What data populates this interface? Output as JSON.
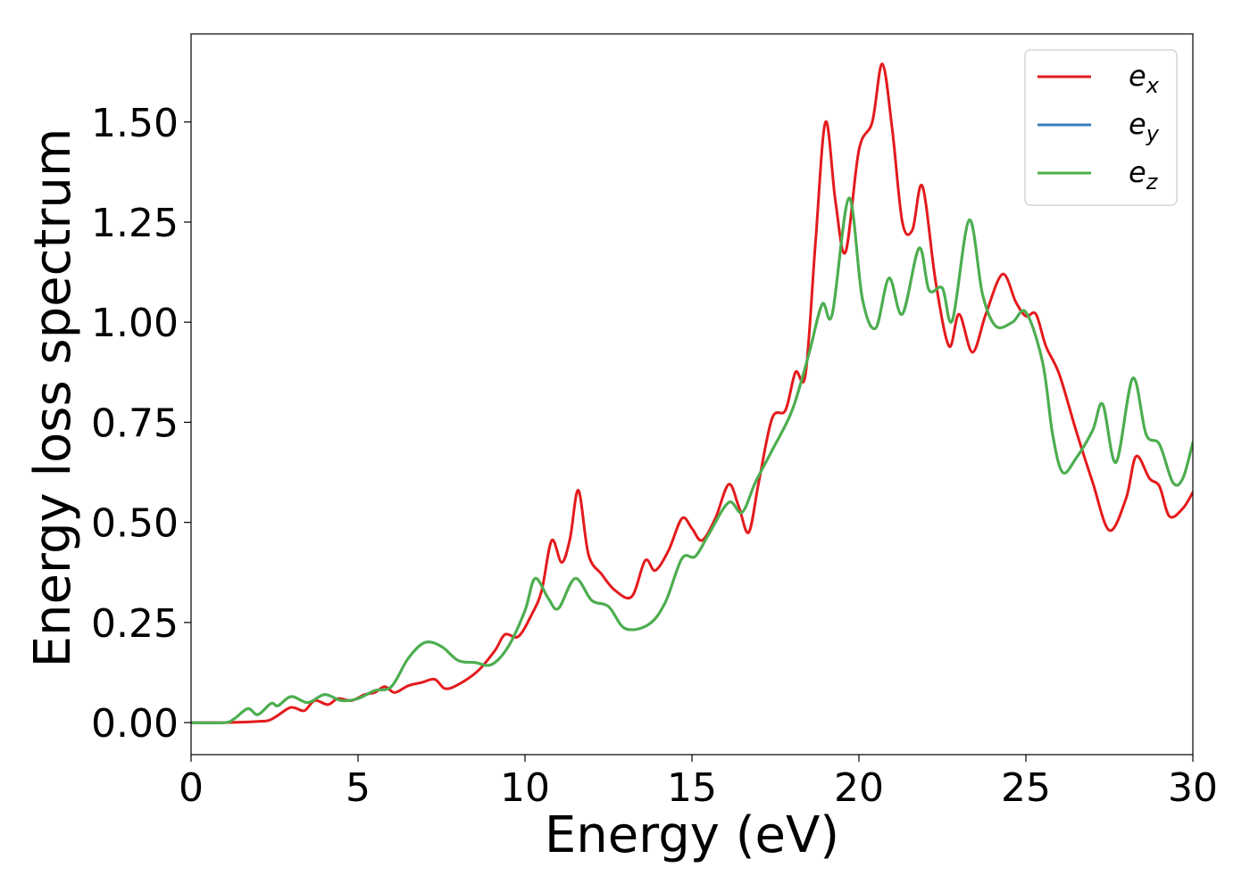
{
  "chart_data": {
    "type": "line",
    "title": "",
    "xlabel": "Energy (eV)",
    "ylabel": "Energy loss spectrum",
    "xlim": [
      0,
      30
    ],
    "ylim": [
      -0.08,
      1.72
    ],
    "xticks": [
      0,
      5,
      10,
      15,
      20,
      25,
      30
    ],
    "xtick_labels": [
      "0",
      "5",
      "10",
      "15",
      "20",
      "25",
      "30"
    ],
    "yticks": [
      0.0,
      0.25,
      0.5,
      0.75,
      1.0,
      1.25,
      1.5
    ],
    "ytick_labels": [
      "0.00",
      "0.25",
      "0.50",
      "0.75",
      "1.00",
      "1.25",
      "1.50"
    ],
    "grid": false,
    "legend_position": "top-right",
    "series": [
      {
        "name": "e",
        "subscript": "x",
        "color": "#e41a1c",
        "points": [
          [
            0,
            0.0
          ],
          [
            1,
            0.0
          ],
          [
            2,
            0.003
          ],
          [
            2.4,
            0.008
          ],
          [
            2.9,
            0.035
          ],
          [
            3.1,
            0.037
          ],
          [
            3.4,
            0.03
          ],
          [
            3.7,
            0.055
          ],
          [
            4.1,
            0.045
          ],
          [
            4.4,
            0.06
          ],
          [
            4.8,
            0.055
          ],
          [
            5.2,
            0.07
          ],
          [
            5.5,
            0.075
          ],
          [
            5.8,
            0.09
          ],
          [
            6.1,
            0.075
          ],
          [
            6.5,
            0.092
          ],
          [
            6.9,
            0.1
          ],
          [
            7.3,
            0.108
          ],
          [
            7.6,
            0.085
          ],
          [
            8.0,
            0.095
          ],
          [
            8.6,
            0.13
          ],
          [
            9.1,
            0.18
          ],
          [
            9.4,
            0.22
          ],
          [
            9.8,
            0.215
          ],
          [
            10.2,
            0.27
          ],
          [
            10.5,
            0.33
          ],
          [
            10.8,
            0.455
          ],
          [
            11.1,
            0.4
          ],
          [
            11.35,
            0.46
          ],
          [
            11.6,
            0.58
          ],
          [
            11.9,
            0.42
          ],
          [
            12.3,
            0.37
          ],
          [
            12.7,
            0.33
          ],
          [
            13.2,
            0.315
          ],
          [
            13.6,
            0.405
          ],
          [
            13.9,
            0.38
          ],
          [
            14.3,
            0.43
          ],
          [
            14.7,
            0.51
          ],
          [
            15.0,
            0.485
          ],
          [
            15.3,
            0.455
          ],
          [
            15.7,
            0.51
          ],
          [
            16.1,
            0.595
          ],
          [
            16.4,
            0.54
          ],
          [
            16.7,
            0.475
          ],
          [
            17.0,
            0.6
          ],
          [
            17.4,
            0.76
          ],
          [
            17.8,
            0.78
          ],
          [
            18.1,
            0.875
          ],
          [
            18.4,
            0.87
          ],
          [
            18.7,
            1.2
          ],
          [
            19.0,
            1.5
          ],
          [
            19.3,
            1.3
          ],
          [
            19.6,
            1.175
          ],
          [
            20.0,
            1.43
          ],
          [
            20.4,
            1.5
          ],
          [
            20.7,
            1.645
          ],
          [
            21.0,
            1.48
          ],
          [
            21.3,
            1.25
          ],
          [
            21.6,
            1.23
          ],
          [
            21.9,
            1.34
          ],
          [
            22.3,
            1.1
          ],
          [
            22.7,
            0.94
          ],
          [
            23.0,
            1.02
          ],
          [
            23.4,
            0.925
          ],
          [
            23.8,
            1.02
          ],
          [
            24.3,
            1.12
          ],
          [
            24.7,
            1.05
          ],
          [
            25.0,
            1.015
          ],
          [
            25.3,
            1.02
          ],
          [
            25.6,
            0.94
          ],
          [
            26.0,
            0.87
          ],
          [
            26.5,
            0.73
          ],
          [
            27.0,
            0.6
          ],
          [
            27.5,
            0.48
          ],
          [
            28.0,
            0.56
          ],
          [
            28.3,
            0.665
          ],
          [
            28.7,
            0.61
          ],
          [
            29.0,
            0.59
          ],
          [
            29.3,
            0.515
          ],
          [
            29.7,
            0.535
          ],
          [
            30,
            0.575
          ]
        ]
      },
      {
        "name": "e",
        "subscript": "y",
        "color": "#377eb8",
        "points": [
          [
            0,
            0.0
          ],
          [
            1,
            0.0
          ],
          [
            1.3,
            0.01
          ],
          [
            1.7,
            0.035
          ],
          [
            2.0,
            0.02
          ],
          [
            2.4,
            0.048
          ],
          [
            2.6,
            0.042
          ],
          [
            3.0,
            0.065
          ],
          [
            3.5,
            0.05
          ],
          [
            4.0,
            0.07
          ],
          [
            4.5,
            0.055
          ],
          [
            5.0,
            0.06
          ],
          [
            5.5,
            0.08
          ],
          [
            6.0,
            0.09
          ],
          [
            6.5,
            0.16
          ],
          [
            7.0,
            0.2
          ],
          [
            7.5,
            0.19
          ],
          [
            8.0,
            0.155
          ],
          [
            8.5,
            0.15
          ],
          [
            9.0,
            0.145
          ],
          [
            9.5,
            0.19
          ],
          [
            10.0,
            0.28
          ],
          [
            10.3,
            0.36
          ],
          [
            10.7,
            0.31
          ],
          [
            11.0,
            0.285
          ],
          [
            11.5,
            0.36
          ],
          [
            12.0,
            0.305
          ],
          [
            12.5,
            0.29
          ],
          [
            13.0,
            0.235
          ],
          [
            13.7,
            0.245
          ],
          [
            14.2,
            0.3
          ],
          [
            14.7,
            0.41
          ],
          [
            15.1,
            0.415
          ],
          [
            15.5,
            0.47
          ],
          [
            16.1,
            0.55
          ],
          [
            16.5,
            0.525
          ],
          [
            16.9,
            0.6
          ],
          [
            17.4,
            0.68
          ],
          [
            18.0,
            0.78
          ],
          [
            18.5,
            0.92
          ],
          [
            18.9,
            1.045
          ],
          [
            19.2,
            1.02
          ],
          [
            19.7,
            1.31
          ],
          [
            20.1,
            1.06
          ],
          [
            20.5,
            0.985
          ],
          [
            20.9,
            1.11
          ],
          [
            21.3,
            1.02
          ],
          [
            21.8,
            1.185
          ],
          [
            22.1,
            1.08
          ],
          [
            22.5,
            1.085
          ],
          [
            22.8,
            1.005
          ],
          [
            23.3,
            1.255
          ],
          [
            23.7,
            1.07
          ],
          [
            24.1,
            0.99
          ],
          [
            24.6,
            1.0
          ],
          [
            25.0,
            1.025
          ],
          [
            25.5,
            0.9
          ],
          [
            25.8,
            0.72
          ],
          [
            26.1,
            0.625
          ],
          [
            26.5,
            0.66
          ],
          [
            27.0,
            0.73
          ],
          [
            27.3,
            0.795
          ],
          [
            27.7,
            0.65
          ],
          [
            28.2,
            0.86
          ],
          [
            28.6,
            0.72
          ],
          [
            29.0,
            0.695
          ],
          [
            29.4,
            0.6
          ],
          [
            29.7,
            0.61
          ],
          [
            30,
            0.7
          ]
        ]
      },
      {
        "name": "e",
        "subscript": "z",
        "color": "#4daf4a",
        "points": [
          [
            0,
            0.0
          ],
          [
            1,
            0.0
          ],
          [
            1.3,
            0.01
          ],
          [
            1.7,
            0.035
          ],
          [
            2.0,
            0.02
          ],
          [
            2.4,
            0.048
          ],
          [
            2.6,
            0.042
          ],
          [
            3.0,
            0.065
          ],
          [
            3.5,
            0.05
          ],
          [
            4.0,
            0.07
          ],
          [
            4.5,
            0.055
          ],
          [
            5.0,
            0.06
          ],
          [
            5.5,
            0.08
          ],
          [
            6.0,
            0.09
          ],
          [
            6.5,
            0.16
          ],
          [
            7.0,
            0.2
          ],
          [
            7.5,
            0.19
          ],
          [
            8.0,
            0.155
          ],
          [
            8.5,
            0.15
          ],
          [
            9.0,
            0.145
          ],
          [
            9.5,
            0.19
          ],
          [
            10.0,
            0.28
          ],
          [
            10.3,
            0.36
          ],
          [
            10.7,
            0.31
          ],
          [
            11.0,
            0.285
          ],
          [
            11.5,
            0.36
          ],
          [
            12.0,
            0.305
          ],
          [
            12.5,
            0.29
          ],
          [
            13.0,
            0.235
          ],
          [
            13.7,
            0.245
          ],
          [
            14.2,
            0.3
          ],
          [
            14.7,
            0.41
          ],
          [
            15.1,
            0.415
          ],
          [
            15.5,
            0.47
          ],
          [
            16.1,
            0.55
          ],
          [
            16.5,
            0.525
          ],
          [
            16.9,
            0.6
          ],
          [
            17.4,
            0.68
          ],
          [
            18.0,
            0.78
          ],
          [
            18.5,
            0.92
          ],
          [
            18.9,
            1.045
          ],
          [
            19.2,
            1.02
          ],
          [
            19.7,
            1.31
          ],
          [
            20.1,
            1.06
          ],
          [
            20.5,
            0.985
          ],
          [
            20.9,
            1.11
          ],
          [
            21.3,
            1.02
          ],
          [
            21.8,
            1.185
          ],
          [
            22.1,
            1.08
          ],
          [
            22.5,
            1.085
          ],
          [
            22.8,
            1.005
          ],
          [
            23.3,
            1.255
          ],
          [
            23.7,
            1.07
          ],
          [
            24.1,
            0.99
          ],
          [
            24.6,
            1.0
          ],
          [
            25.0,
            1.025
          ],
          [
            25.5,
            0.9
          ],
          [
            25.8,
            0.72
          ],
          [
            26.1,
            0.625
          ],
          [
            26.5,
            0.66
          ],
          [
            27.0,
            0.73
          ],
          [
            27.3,
            0.795
          ],
          [
            27.7,
            0.65
          ],
          [
            28.2,
            0.86
          ],
          [
            28.6,
            0.72
          ],
          [
            29.0,
            0.695
          ],
          [
            29.4,
            0.6
          ],
          [
            29.7,
            0.61
          ],
          [
            30,
            0.7
          ]
        ]
      }
    ]
  }
}
